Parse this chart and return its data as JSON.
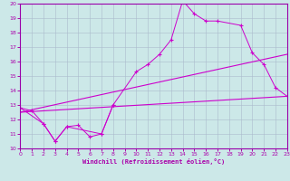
{
  "xlabel": "Windchill (Refroidissement éolien,°C)",
  "xlim": [
    0,
    23
  ],
  "ylim": [
    10,
    20
  ],
  "yticks": [
    10,
    11,
    12,
    13,
    14,
    15,
    16,
    17,
    18,
    19,
    20
  ],
  "xticks": [
    0,
    1,
    2,
    3,
    4,
    5,
    6,
    7,
    8,
    9,
    10,
    11,
    12,
    13,
    14,
    15,
    16,
    17,
    18,
    19,
    20,
    21,
    22,
    23
  ],
  "background_color": "#cce8e8",
  "grid_color": "#aabbcc",
  "line_color": "#cc00cc",
  "s1x": [
    0,
    1,
    2,
    3,
    4,
    5,
    6,
    7,
    8
  ],
  "s1y": [
    12.8,
    12.6,
    11.7,
    10.5,
    11.5,
    11.6,
    10.8,
    11.0,
    13.0
  ],
  "s2x": [
    0,
    2,
    3,
    4,
    7,
    8,
    10,
    11,
    12,
    13,
    14,
    15,
    16,
    17,
    19,
    20,
    21,
    22,
    23
  ],
  "s2y": [
    12.8,
    11.7,
    10.5,
    11.5,
    11.0,
    13.0,
    15.3,
    15.8,
    16.5,
    17.5,
    20.2,
    19.3,
    18.8,
    18.8,
    18.5,
    16.6,
    15.8,
    14.2,
    13.6
  ],
  "s3x": [
    0,
    23
  ],
  "s3y": [
    12.5,
    13.6
  ],
  "s4x": [
    0,
    23
  ],
  "s4y": [
    12.5,
    16.5
  ]
}
